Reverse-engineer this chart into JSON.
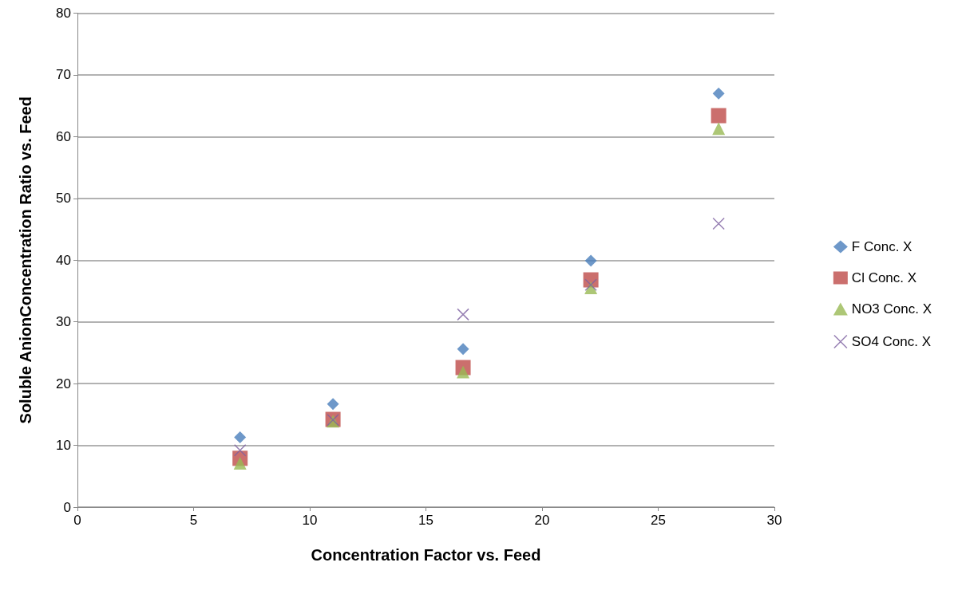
{
  "chart_data": {
    "type": "scatter",
    "xlabel": "Concentration Factor vs. Feed",
    "ylabel": "Soluble AnionConcentration Ratio vs. Feed",
    "x": [
      7.0,
      11.0,
      16.6,
      22.1,
      27.6
    ],
    "series": [
      {
        "name": "F Conc. X",
        "color": "#4a7ebb",
        "marker": "diamond",
        "values": [
          11.3,
          16.7,
          25.6,
          39.9,
          67.0
        ]
      },
      {
        "name": "Cl Conc. X",
        "color": "#be4b48",
        "marker": "square",
        "values": [
          7.9,
          14.2,
          22.6,
          36.8,
          63.4
        ]
      },
      {
        "name": "NO3 Conc. X",
        "color": "#98b954",
        "marker": "triangle",
        "values": [
          7.1,
          13.9,
          21.9,
          35.5,
          61.3
        ]
      },
      {
        "name": "SO4 Conc. X",
        "color": "#7d60a0",
        "marker": "cross",
        "values": [
          9.2,
          14.1,
          31.2,
          36.0,
          45.9
        ]
      }
    ],
    "xlim": [
      0,
      30
    ],
    "xticks": [
      0,
      5,
      10,
      15,
      20,
      25,
      30
    ],
    "ylim": [
      0,
      80
    ],
    "yticks": [
      0,
      10,
      20,
      30,
      40,
      50,
      60,
      70,
      80
    ],
    "grid": "y",
    "legend": "right"
  }
}
